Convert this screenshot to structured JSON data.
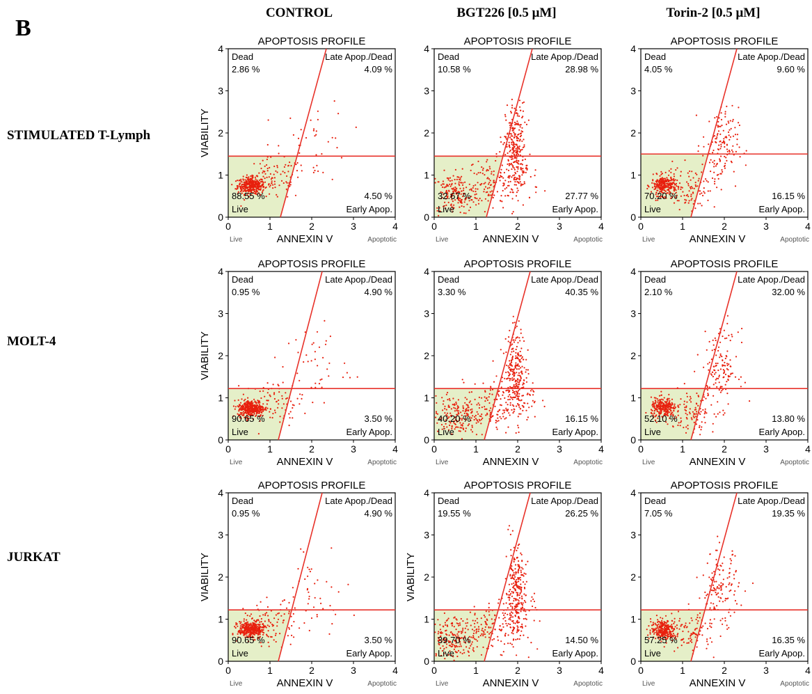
{
  "panel_letter": "B",
  "column_headers": [
    "CONTROL",
    "BGT226  [0.5 μM]",
    "Torin-2  [0.5 μM]"
  ],
  "row_labels": [
    "STIMULATED  T-Lymph",
    "MOLT-4",
    "JURKAT"
  ],
  "colors": {
    "dots": "#e8200e",
    "gate_line": "#e8322a",
    "live_fill": "#e5efc8"
  },
  "chart_data": [
    {
      "type": "scatter",
      "row": 0,
      "col": 0,
      "title": "APOPTOSIS PROFILE",
      "xlabel": "ANNEXIN V",
      "ylabel": "VIABILITY",
      "xlim": [
        0,
        4
      ],
      "ylim": [
        0,
        4
      ],
      "xticks": [
        "0",
        "1",
        "2",
        "3",
        "4"
      ],
      "yticks": [
        "0",
        "1",
        "2",
        "3",
        "4"
      ],
      "x_min_label": "Live",
      "x_max_label": "Apoptotic",
      "gate": {
        "hline_y": 1.45,
        "diag": [
          [
            1.25,
            0
          ],
          [
            2.35,
            4
          ]
        ]
      },
      "quadrants": {
        "dead": {
          "label": "Dead",
          "value": "2.86 %"
        },
        "late": {
          "label": "Late Apop./Dead",
          "value": "4.09 %"
        },
        "live": {
          "label": "Live",
          "value": "88.55 %"
        },
        "early": {
          "label": "Early Apop.",
          "value": "4.50 %"
        }
      }
    },
    {
      "type": "scatter",
      "row": 0,
      "col": 1,
      "title": "APOPTOSIS PROFILE",
      "xlabel": "ANNEXIN V",
      "ylabel": "",
      "xlim": [
        0,
        4
      ],
      "ylim": [
        0,
        4
      ],
      "xticks": [
        "0",
        "1",
        "2",
        "3",
        "4"
      ],
      "yticks": [
        "0",
        "1",
        "2",
        "3",
        "4"
      ],
      "x_min_label": "Live",
      "x_max_label": "Apoptotic",
      "gate": {
        "hline_y": 1.45,
        "diag": [
          [
            1.25,
            0
          ],
          [
            2.35,
            4
          ]
        ]
      },
      "quadrants": {
        "dead": {
          "label": "Dead",
          "value": "10.58 %"
        },
        "late": {
          "label": "Late Apop./Dead",
          "value": "28.98 %"
        },
        "live": {
          "label": "Live",
          "value": "32.67 %"
        },
        "early": {
          "label": "Early Apop.",
          "value": "27.77 %"
        }
      }
    },
    {
      "type": "scatter",
      "row": 0,
      "col": 2,
      "title": "APOPTOSIS PROFILE",
      "xlabel": "ANNEXIN V",
      "ylabel": "",
      "xlim": [
        0,
        4
      ],
      "ylim": [
        0,
        4
      ],
      "xticks": [
        "0",
        "1",
        "2",
        "3",
        "4"
      ],
      "yticks": [
        "0",
        "1",
        "2",
        "3",
        "4"
      ],
      "x_min_label": "Live",
      "x_max_label": "Apoptotic",
      "gate": {
        "hline_y": 1.5,
        "diag": [
          [
            1.2,
            0
          ],
          [
            2.3,
            4
          ]
        ]
      },
      "quadrants": {
        "dead": {
          "label": "Dead",
          "value": "4.05 %"
        },
        "late": {
          "label": "Late Apop./Dead",
          "value": "9.60 %"
        },
        "live": {
          "label": "Live",
          "value": "70.20 %"
        },
        "early": {
          "label": "Early Apop.",
          "value": "16.15 %"
        }
      }
    },
    {
      "type": "scatter",
      "row": 1,
      "col": 0,
      "title": "APOPTOSIS PROFILE",
      "xlabel": "ANNEXIN V",
      "ylabel": "VIABILITY",
      "xlim": [
        0,
        4
      ],
      "ylim": [
        0,
        4
      ],
      "xticks": [
        "0",
        "1",
        "2",
        "3",
        "4"
      ],
      "yticks": [
        "0",
        "1",
        "2",
        "3",
        "4"
      ],
      "x_min_label": "Live",
      "x_max_label": "Apoptotic",
      "gate": {
        "hline_y": 1.22,
        "diag": [
          [
            1.2,
            0
          ],
          [
            2.25,
            4
          ]
        ]
      },
      "quadrants": {
        "dead": {
          "label": "Dead",
          "value": "0.95 %"
        },
        "late": {
          "label": "Late Apop./Dead",
          "value": "4.90 %"
        },
        "live": {
          "label": "Live",
          "value": "90.65 %"
        },
        "early": {
          "label": "Early Apop.",
          "value": "3.50 %"
        }
      }
    },
    {
      "type": "scatter",
      "row": 1,
      "col": 1,
      "title": "APOPTOSIS PROFILE",
      "xlabel": "ANNEXIN V",
      "ylabel": "",
      "xlim": [
        0,
        4
      ],
      "ylim": [
        0,
        4
      ],
      "xticks": [
        "0",
        "1",
        "2",
        "3",
        "4"
      ],
      "yticks": [
        "0",
        "1",
        "2",
        "3",
        "4"
      ],
      "x_min_label": "Live",
      "x_max_label": "Apoptotic",
      "gate": {
        "hline_y": 1.22,
        "diag": [
          [
            1.2,
            0
          ],
          [
            2.3,
            4
          ]
        ]
      },
      "quadrants": {
        "dead": {
          "label": "Dead",
          "value": "3.30 %"
        },
        "late": {
          "label": "Late Apop./Dead",
          "value": "40.35 %"
        },
        "live": {
          "label": "Live",
          "value": "40.20 %"
        },
        "early": {
          "label": "Early Apop.",
          "value": "16.15 %"
        }
      }
    },
    {
      "type": "scatter",
      "row": 1,
      "col": 2,
      "title": "APOPTOSIS PROFILE",
      "xlabel": "ANNEXIN V",
      "ylabel": "",
      "xlim": [
        0,
        4
      ],
      "ylim": [
        0,
        4
      ],
      "xticks": [
        "0",
        "1",
        "2",
        "3",
        "4"
      ],
      "yticks": [
        "0",
        "1",
        "2",
        "3",
        "4"
      ],
      "x_min_label": "Live",
      "x_max_label": "Apoptotic",
      "gate": {
        "hline_y": 1.22,
        "diag": [
          [
            1.2,
            0
          ],
          [
            2.3,
            4
          ]
        ]
      },
      "quadrants": {
        "dead": {
          "label": "Dead",
          "value": "2.10 %"
        },
        "late": {
          "label": "Late Apop./Dead",
          "value": "32.00 %"
        },
        "live": {
          "label": "Live",
          "value": "52.10 %"
        },
        "early": {
          "label": "Early Apop.",
          "value": "13.80 %"
        }
      }
    },
    {
      "type": "scatter",
      "row": 2,
      "col": 0,
      "title": "APOPTOSIS PROFILE",
      "xlabel": "ANNEXIN V",
      "ylabel": "VIABILITY",
      "xlim": [
        0,
        4
      ],
      "ylim": [
        0,
        4
      ],
      "xticks": [
        "0",
        "1",
        "2",
        "3",
        "4"
      ],
      "yticks": [
        "0",
        "1",
        "2",
        "3",
        "4"
      ],
      "x_min_label": "Live",
      "x_max_label": "Apoptotic",
      "gate": {
        "hline_y": 1.22,
        "diag": [
          [
            1.2,
            0
          ],
          [
            2.25,
            4
          ]
        ]
      },
      "quadrants": {
        "dead": {
          "label": "Dead",
          "value": "0.95 %"
        },
        "late": {
          "label": "Late Apop./Dead",
          "value": "4.90 %"
        },
        "live": {
          "label": "Live",
          "value": "90.65 %"
        },
        "early": {
          "label": "Early Apop.",
          "value": "3.50 %"
        }
      }
    },
    {
      "type": "scatter",
      "row": 2,
      "col": 1,
      "title": "APOPTOSIS PROFILE",
      "xlabel": "ANNEXIN V",
      "ylabel": "VIABILITY",
      "xlim": [
        0,
        4
      ],
      "ylim": [
        0,
        4
      ],
      "xticks": [
        "0",
        "1",
        "2",
        "3",
        "4"
      ],
      "yticks": [
        "0",
        "1",
        "2",
        "3",
        "4"
      ],
      "x_min_label": "Live",
      "x_max_label": "Apoptotic",
      "gate": {
        "hline_y": 1.22,
        "diag": [
          [
            1.2,
            0
          ],
          [
            2.3,
            4
          ]
        ]
      },
      "quadrants": {
        "dead": {
          "label": "Dead",
          "value": "19.55 %"
        },
        "late": {
          "label": "Late Apop./Dead",
          "value": "26.25 %"
        },
        "live": {
          "label": "Live",
          "value": "39.70 %"
        },
        "early": {
          "label": "Early Apop.",
          "value": "14.50 %"
        }
      }
    },
    {
      "type": "scatter",
      "row": 2,
      "col": 2,
      "title": "APOPTOSIS PROFILE",
      "xlabel": "ANNEXIN V",
      "ylabel": "",
      "xlim": [
        0,
        4
      ],
      "ylim": [
        0,
        4
      ],
      "xticks": [
        "0",
        "1",
        "2",
        "3",
        "4"
      ],
      "yticks": [
        "0",
        "1",
        "2",
        "3",
        "4"
      ],
      "x_min_label": "Live",
      "x_max_label": "Apoptotic",
      "gate": {
        "hline_y": 1.22,
        "diag": [
          [
            1.2,
            0
          ],
          [
            2.3,
            4
          ]
        ]
      },
      "quadrants": {
        "dead": {
          "label": "Dead",
          "value": "7.05 %"
        },
        "late": {
          "label": "Late Apop./Dead",
          "value": "19.35 %"
        },
        "live": {
          "label": "Live",
          "value": "57.25 %"
        },
        "early": {
          "label": "Early Apop.",
          "value": "16.35 %"
        }
      }
    }
  ]
}
